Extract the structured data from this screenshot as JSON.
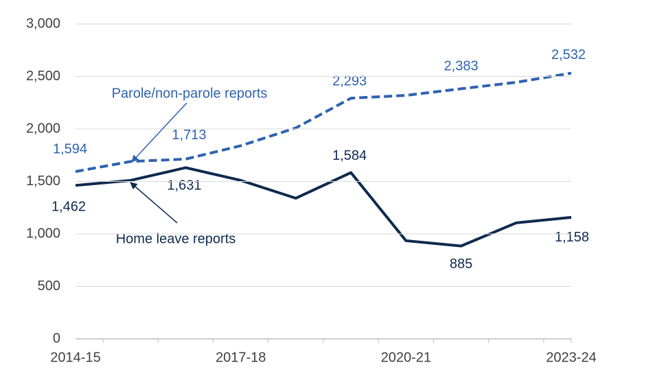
{
  "chart_data": {
    "type": "line",
    "categories": [
      "2014-15",
      null,
      null,
      "2017-18",
      null,
      null,
      "2020-21",
      null,
      null,
      "2023-24"
    ],
    "series": [
      {
        "name": "Parole/non-parole reports",
        "color": "#2e62b0",
        "dashed": true,
        "values": [
          1594,
          1690,
          1713,
          1840,
          2010,
          2293,
          2320,
          2383,
          2444,
          2532
        ],
        "value_labels": [
          "1,594",
          null,
          "1,713",
          null,
          null,
          "2,293",
          null,
          "2,383",
          null,
          "2,532"
        ]
      },
      {
        "name": "Home leave reports",
        "color": "#0e2a4f",
        "dashed": false,
        "values": [
          1462,
          1510,
          1631,
          1510,
          1340,
          1584,
          935,
          885,
          1105,
          1158
        ],
        "value_labels": [
          "1,462",
          null,
          "1,631",
          null,
          null,
          "1,584",
          null,
          "885",
          null,
          "1,158"
        ]
      }
    ],
    "ylim": [
      0,
      3000
    ],
    "yticks": [
      0,
      500,
      {
        "value": 1000,
        "label": "1,000"
      },
      {
        "value": 1500,
        "label": "1,500"
      },
      {
        "value": 2000,
        "label": "2,000"
      },
      {
        "value": 2500,
        "label": "2,500"
      },
      {
        "value": 3000,
        "label": "3,000"
      }
    ],
    "grid": true
  }
}
